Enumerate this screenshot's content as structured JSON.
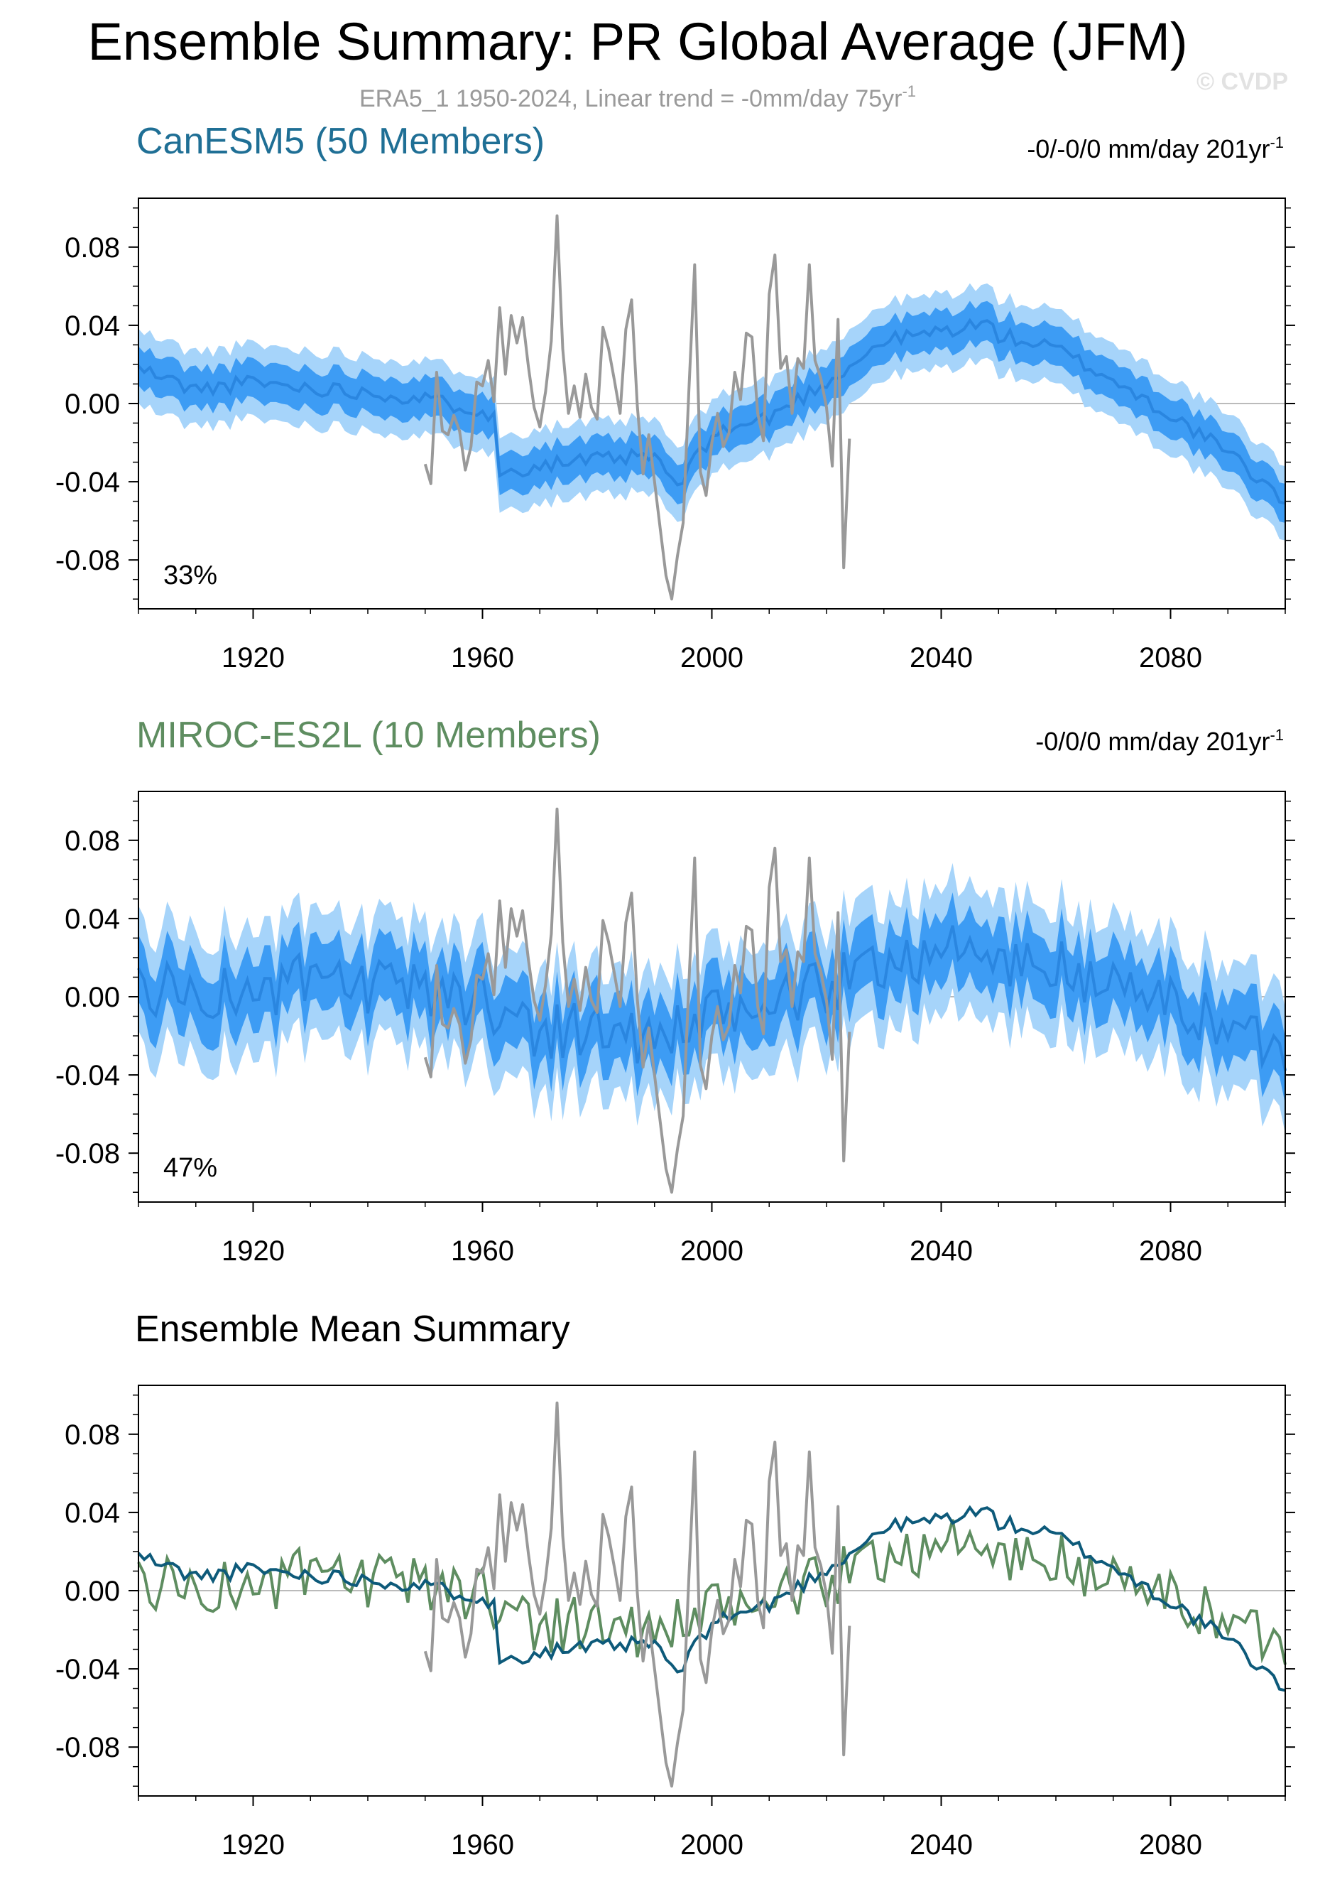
{
  "figure": {
    "title": "Ensemble Summary: PR Global Average (JFM)",
    "subtitle": "ERA5_1 1950-2024, Linear trend = -0mm/day 75yr",
    "subtitle_sup": "-1",
    "watermark": "© CVDP"
  },
  "colors": {
    "canesm_title": "#1f6f95",
    "miroc_title": "#5e8d60",
    "summary_title": "#000000",
    "band_outer": "#a6d4fa",
    "band_inner": "#3d9cf4",
    "ens_mean": "#2a86e0",
    "obs": "#999999",
    "canesm_mean_line": "#0d5a7a",
    "miroc_mean_line": "#5e8d60",
    "zero_line": "#bbbbbb"
  },
  "panels": [
    {
      "title": "CanESM5 (50 Members)",
      "trend": "-0/-0/0 mm/day 201yr",
      "trend_sup": "-1",
      "percent": "33%"
    },
    {
      "title": "MIROC-ES2L (10 Members)",
      "trend": "-0/0/0 mm/day 201yr",
      "trend_sup": "-1",
      "percent": "47%"
    },
    {
      "title": "Ensemble Mean Summary",
      "trend": "",
      "trend_sup": "",
      "percent": ""
    }
  ],
  "chart_data": [
    {
      "type": "line",
      "title": "CanESM5 (50 Members)",
      "x_range": [
        1900,
        2100
      ],
      "ylim": [
        -0.105,
        0.105
      ],
      "x_ticks": [
        "1920",
        "1960",
        "2000",
        "2040",
        "2080"
      ],
      "y_ticks": [
        "0.08",
        "0.04",
        "0.00",
        "-0.04",
        "-0.08"
      ],
      "series": [
        {
          "name": "ensemble mean",
          "x": [
            1900,
            1910,
            1920,
            1930,
            1940,
            1950,
            1960,
            1962,
            1963,
            1970,
            1980,
            1990,
            1994,
            2000,
            2010,
            2020,
            2025,
            2030,
            2040,
            2048,
            2050,
            2060,
            2070,
            2080,
            2090,
            2100
          ],
          "y": [
            0.018,
            0.007,
            0.011,
            0.008,
            0.006,
            0.002,
            -0.003,
            -0.008,
            -0.036,
            -0.031,
            -0.029,
            -0.027,
            -0.043,
            -0.016,
            -0.007,
            0.011,
            0.021,
            0.032,
            0.037,
            0.041,
            0.035,
            0.028,
            0.012,
            -0.006,
            -0.025,
            -0.05
          ]
        },
        {
          "name": "ERA5_1",
          "x": [
            1950,
            1951,
            1952,
            1953,
            1954,
            1955,
            1956,
            1957,
            1958,
            1959,
            1960,
            1961,
            1962,
            1963,
            1964,
            1965,
            1966,
            1967,
            1968,
            1969,
            1970,
            1971,
            1972,
            1973,
            1974,
            1975,
            1976,
            1977,
            1978,
            1979,
            1980,
            1981,
            1982,
            1983,
            1984,
            1985,
            1986,
            1987,
            1988,
            1989,
            1990,
            1991,
            1992,
            1993,
            1994,
            1995,
            1996,
            1997,
            1998,
            1999,
            2000,
            2001,
            2002,
            2003,
            2004,
            2005,
            2006,
            2007,
            2008,
            2009,
            2010,
            2011,
            2012,
            2013,
            2014,
            2015,
            2016,
            2017,
            2018,
            2019,
            2020,
            2021,
            2022,
            2023,
            2024
          ],
          "y": [
            -0.031,
            -0.041,
            0.016,
            -0.014,
            -0.016,
            -0.006,
            -0.014,
            -0.034,
            -0.022,
            0.011,
            0.009,
            0.022,
            0.001,
            0.049,
            0.015,
            0.045,
            0.031,
            0.044,
            0.019,
            -0.002,
            -0.012,
            0.006,
            0.032,
            0.096,
            0.028,
            -0.005,
            0.009,
            -0.007,
            0.015,
            -0.002,
            -0.008,
            0.039,
            0.028,
            0.012,
            -0.005,
            0.038,
            0.053,
            -0.001,
            -0.036,
            -0.016,
            -0.04,
            -0.064,
            -0.088,
            -0.1,
            -0.078,
            -0.061,
            0.007,
            0.071,
            -0.035,
            -0.047,
            -0.02,
            -0.005,
            -0.022,
            -0.015,
            0.016,
            0.002,
            0.036,
            0.034,
            -0.005,
            -0.019,
            0.056,
            0.076,
            0.018,
            0.024,
            -0.005,
            0.023,
            0.018,
            0.071,
            0.022,
            0.013,
            -0.002,
            -0.032,
            0.043,
            -0.084,
            -0.018
          ]
        }
      ]
    },
    {
      "type": "line",
      "title": "MIROC-ES2L (10 Members)",
      "x_range": [
        1900,
        2100
      ],
      "ylim": [
        -0.105,
        0.105
      ],
      "x_ticks": [
        "1920",
        "1960",
        "2000",
        "2040",
        "2080"
      ],
      "y_ticks": [
        "0.08",
        "0.04",
        "0.00",
        "-0.04",
        "-0.08"
      ],
      "series": [
        {
          "name": "ensemble mean",
          "x": [
            1900,
            1910,
            1920,
            1930,
            1940,
            1950,
            1960,
            1970,
            1980,
            1990,
            2000,
            2010,
            2020,
            2030,
            2040,
            2050,
            2060,
            2070,
            2080,
            2090,
            2100
          ],
          "y": [
            0.005,
            0.002,
            0.001,
            0.008,
            0.003,
            0.004,
            -0.002,
            -0.017,
            -0.016,
            -0.022,
            -0.012,
            -0.004,
            0.004,
            0.018,
            0.025,
            0.018,
            0.015,
            0.005,
            -0.003,
            -0.016,
            -0.026
          ]
        },
        {
          "name": "ERA5_1",
          "x": [
            1950,
            1960,
            1973,
            1980,
            1993,
            2000,
            2010,
            2020,
            2024
          ],
          "y": [
            -0.031,
            0.009,
            0.096,
            -0.008,
            -0.1,
            -0.02,
            0.056,
            -0.002,
            -0.018
          ]
        }
      ]
    },
    {
      "type": "line",
      "title": "Ensemble Mean Summary",
      "x_range": [
        1900,
        2100
      ],
      "ylim": [
        -0.105,
        0.105
      ],
      "x_ticks": [
        "1920",
        "1960",
        "2000",
        "2040",
        "2080"
      ],
      "y_ticks": [
        "0.08",
        "0.04",
        "0.00",
        "-0.04",
        "-0.08"
      ],
      "series": [
        {
          "name": "CanESM5",
          "x": [
            1900,
            1910,
            1920,
            1930,
            1940,
            1950,
            1960,
            1962,
            1963,
            1970,
            1980,
            1990,
            1994,
            2000,
            2010,
            2020,
            2025,
            2030,
            2040,
            2048,
            2050,
            2060,
            2070,
            2080,
            2090,
            2100
          ],
          "y": [
            0.018,
            0.007,
            0.011,
            0.008,
            0.006,
            0.002,
            -0.003,
            -0.008,
            -0.036,
            -0.031,
            -0.029,
            -0.027,
            -0.043,
            -0.016,
            -0.007,
            0.011,
            0.021,
            0.032,
            0.037,
            0.041,
            0.035,
            0.028,
            0.012,
            -0.006,
            -0.025,
            -0.05
          ]
        },
        {
          "name": "MIROC-ES2L",
          "x": [
            1900,
            1910,
            1920,
            1930,
            1940,
            1950,
            1960,
            1970,
            1980,
            1990,
            2000,
            2010,
            2020,
            2030,
            2040,
            2050,
            2060,
            2070,
            2080,
            2090,
            2100
          ],
          "y": [
            0.005,
            0.002,
            0.001,
            0.008,
            0.003,
            0.004,
            -0.002,
            -0.017,
            -0.016,
            -0.022,
            -0.012,
            -0.004,
            0.004,
            0.018,
            0.025,
            0.018,
            0.015,
            0.005,
            -0.003,
            -0.016,
            -0.026
          ]
        },
        {
          "name": "ERA5_1",
          "x": [
            1950,
            1960,
            1973,
            1980,
            1993,
            2000,
            2010,
            2020,
            2024
          ],
          "y": [
            -0.031,
            0.009,
            0.096,
            -0.008,
            -0.1,
            -0.02,
            0.056,
            -0.002,
            -0.018
          ]
        }
      ]
    }
  ]
}
